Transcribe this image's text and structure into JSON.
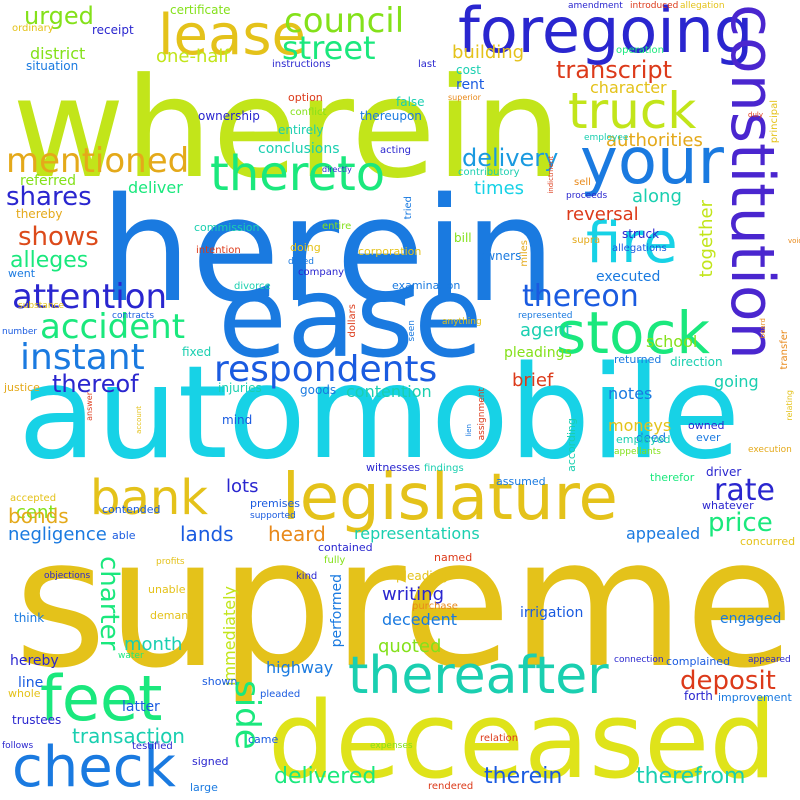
{
  "colors": {
    "yellow_green": "#c2e51a",
    "gold": "#e4c21a",
    "cyan": "#17d2e6",
    "blue": "#1a7ae0",
    "indigo": "#2a26cf",
    "green": "#1ae87d",
    "lime": "#84e11a",
    "orange": "#e8891a",
    "red": "#dc3a1a",
    "teal": "#1acfb0"
  },
  "words": {
    "wherein": "wherein",
    "herein": "herein",
    "automobile": "automobile",
    "supreme": "supreme",
    "deceased": "deceased",
    "ease": "ease",
    "foregoing": "foregoing",
    "constitution": "constitution",
    "legislature": "legislature",
    "lease": "lease",
    "council": "council",
    "your": "your",
    "truck": "truck",
    "street": "street",
    "thereto": "thereto",
    "fire": "fire",
    "stock": "stock",
    "feet": "feet",
    "check": "check",
    "thereafter": "thereafter",
    "bank": "bank",
    "mentioned": "mentioned",
    "instant": "instant",
    "accident": "accident",
    "attention": "attention",
    "respondents": "respondents",
    "thereon": "thereon",
    "transcript": "transcript",
    "delivery": "delivery",
    "shares": "shares",
    "shows": "shows",
    "alleges": "alleges",
    "thereof": "thereof",
    "urged": "urged",
    "district": "district",
    "one_half": "one-half",
    "building": "building",
    "character": "character",
    "authorities": "authorities",
    "reversal": "reversal",
    "along": "along",
    "times": "times",
    "deliver": "deliver",
    "referred": "referred",
    "conclusions": "conclusions",
    "together": "together",
    "agent": "agent",
    "school": "school",
    "executed": "executed",
    "pleadings": "pleadings",
    "brief": "brief",
    "rate": "rate",
    "notes": "notes",
    "going": "going",
    "moneys": "moneys",
    "contention": "contention",
    "lots": "lots",
    "cent": "cent",
    "bonds": "bonds",
    "lands": "lands",
    "negligence": "negligence",
    "heard": "heard",
    "representations": "representations",
    "appealed": "appealed",
    "price": "price",
    "side": "side",
    "charter": "charter",
    "month": "month",
    "quoted": "quoted",
    "writing": "writing",
    "decedent": "decedent",
    "deposit": "deposit",
    "highway": "highway",
    "transaction": "transaction",
    "delivered": "delivered",
    "therein": "therein",
    "therefrom": "therefrom",
    "line": "line",
    "hereby": "hereby",
    "latter": "latter",
    "trustees": "trustees",
    "immediately": "immediately",
    "performed": "performed",
    "irrigation": "irrigation",
    "engaged": "engaged",
    "pleading": "pleading",
    "purchase": "purchase",
    "certificate": "certificate",
    "receipt": "receipt",
    "ordinary": "ordinary",
    "situation": "situation",
    "instructions": "instructions",
    "last": "last",
    "operation": "operation",
    "cost": "cost",
    "rent": "rent",
    "superior": "superior",
    "option": "option",
    "false": "false",
    "thereupon": "thereupon",
    "conflict": "conflict",
    "entirely": "entirely",
    "ownership": "ownership",
    "acting": "acting",
    "contributory": "contributory",
    "employee": "employee",
    "sell": "sell",
    "proceeds": "proceeds",
    "indictment": "indictment",
    "supra": "supra",
    "struck": "struck",
    "tried": "tried",
    "bill": "bill",
    "allegations": "allegations",
    "owners": "owners",
    "miles": "miles",
    "corporation": "corporation",
    "company": "company",
    "intention": "intention",
    "doing": "doing",
    "dated": "dated",
    "went": "went",
    "commission": "commission",
    "entire": "entire",
    "thereby": "thereby",
    "divorce": "divorce",
    "examination": "examination",
    "represented": "represented",
    "substance": "substance",
    "contracts": "contracts",
    "number": "number",
    "fixed": "fixed",
    "dollars": "dollars",
    "seen": "seen",
    "anything": "anything",
    "returned": "returned",
    "direction": "direction",
    "justice": "justice",
    "injuries": "injuries",
    "goods": "goods",
    "answer": "answer",
    "account": "account",
    "mind": "mind",
    "lien": "lien",
    "assignment": "assignment",
    "deed": "deed",
    "according": "according",
    "employed": "employed",
    "appellants": "appellants",
    "owned": "owned",
    "ever": "ever",
    "execution": "execution",
    "witnesses": "witnesses",
    "findings": "findings",
    "therefor": "therefor",
    "driver": "driver",
    "assumed": "assumed",
    "whatever": "whatever",
    "accepted": "accepted",
    "contended": "contended",
    "premises": "premises",
    "supported": "supported",
    "contained": "contained",
    "concurred": "concurred",
    "able": "able",
    "profits": "profits",
    "fully": "fully",
    "named": "named",
    "kind": "kind",
    "objections": "objections",
    "unable": "unable",
    "demand": "demand",
    "think": "think",
    "water": "water",
    "shown": "shown",
    "whole": "whole",
    "pleaded": "pleaded",
    "forth": "forth",
    "improvement": "improvement",
    "complained": "complained",
    "appeared": "appeared",
    "connection": "connection",
    "follows": "follows",
    "testified": "testified",
    "came": "came",
    "signed": "signed",
    "large": "large",
    "expenses": "expenses",
    "relation": "relation",
    "rendered": "rendered",
    "amendment": "amendment",
    "introduced": "introduced",
    "allegation": "allegation",
    "duly": "duly",
    "principal": "principal",
    "void": "void",
    "board": "board",
    "transfer": "transfer",
    "relating": "relating",
    "directly": "directly"
  }
}
